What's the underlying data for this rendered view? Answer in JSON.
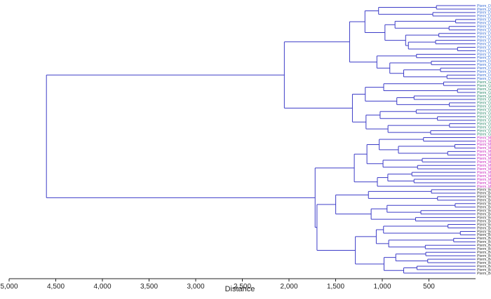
{
  "chart_data": {
    "type": "dendrogram",
    "xlabel": "Distance",
    "xlim": [
      5000,
      0
    ],
    "xticks": [
      5000,
      4500,
      4000,
      3500,
      3000,
      2500,
      2000,
      1500,
      1000,
      500
    ],
    "xtick_labels": [
      "5,000",
      "4,500",
      "4,000",
      "3,500",
      "3,000",
      "2,500",
      "2,000",
      "1,500",
      "1,000",
      "500"
    ],
    "line_color": "#3c3cc8",
    "groups": [
      {
        "name": "Dinajpur",
        "label": "Pterm_Dinajpur",
        "count": 22,
        "color": "#3b6fd6"
      },
      {
        "name": "Gaibanda",
        "label": "Pterm_Gaibanda",
        "count": 16,
        "color": "#2e8b6e"
      },
      {
        "name": "Mymensingh",
        "label": "Pterm_Mymens",
        "count": 15,
        "color": "#cc2fc0"
      },
      {
        "name": "Bogura",
        "label": "Pterm_Bogura",
        "count": 25,
        "color": "#333333"
      }
    ],
    "merges": {
      "root": 4600,
      "dinajpur_gaibanda": 2050,
      "mymensingh_bogura": 1720,
      "dinajpur": 1350,
      "gaibanda": 1320,
      "mymensingh": 1300,
      "bogura": 1700
    }
  }
}
